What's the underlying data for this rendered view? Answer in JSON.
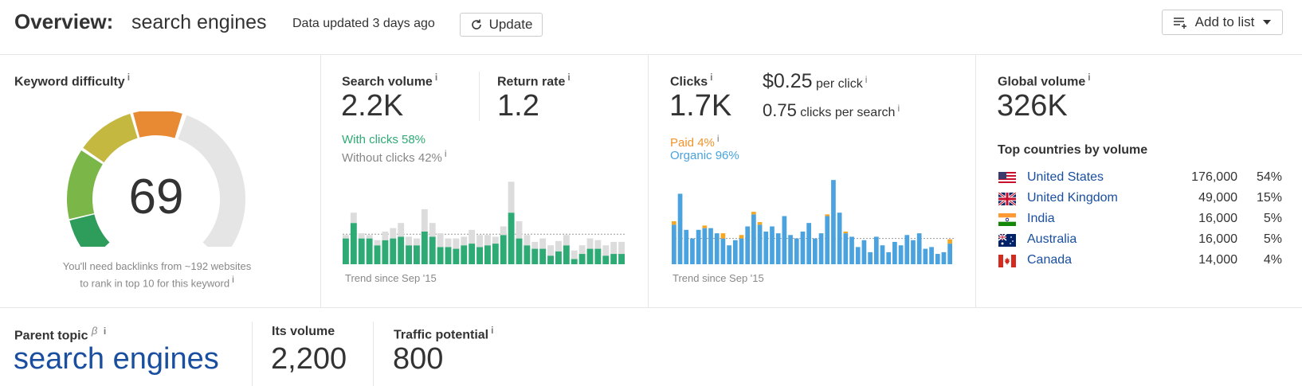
{
  "header": {
    "title": "Overview:",
    "keyword": "search engines",
    "updated": "Data updated 3 days ago",
    "update_label": "Update",
    "add_to_list_label": "Add to list"
  },
  "keyword_difficulty": {
    "label": "Keyword difficulty",
    "info": "i",
    "value": "69",
    "score": 69,
    "note_line1": "You'll need backlinks from ~192 websites",
    "note_line2": "to rank in top 10 for this keyword",
    "note_info": "i",
    "colors": [
      "#2e9d5b",
      "#7ab648",
      "#c5b840",
      "#e88a34",
      "#e5e5e5"
    ]
  },
  "search_volume": {
    "label": "Search volume",
    "info": "i",
    "value": "2.2K",
    "return_rate_label": "Return rate",
    "return_rate_info": "i",
    "return_rate_value": "1.2",
    "with_clicks": "With clicks 58%",
    "without_clicks": "Without clicks 42%",
    "without_info": "i",
    "trend_label": "Trend since Sep '15",
    "colors": {
      "with": "#2eab74",
      "without": "#dcdcdc"
    }
  },
  "clicks": {
    "label": "Clicks",
    "info": "i",
    "value": "1.7K",
    "cpc_value": "$0.25",
    "cpc_label": "per click",
    "cpc_info": "i",
    "cps_value": "0.75",
    "cps_label": "clicks per search",
    "cps_info": "i",
    "paid": "Paid 4%",
    "paid_info": "i",
    "organic": "Organic 96%",
    "trend_label": "Trend since Sep '15",
    "colors": {
      "paid": "#f5a623",
      "organic": "#4aa3df"
    }
  },
  "global_volume": {
    "label": "Global volume",
    "info": "i",
    "value": "326K",
    "top_countries_label": "Top countries by volume",
    "countries": [
      {
        "name": "United States",
        "volume": "176,000",
        "pct": "54%",
        "flag": "us"
      },
      {
        "name": "United Kingdom",
        "volume": "49,000",
        "pct": "15%",
        "flag": "uk"
      },
      {
        "name": "India",
        "volume": "16,000",
        "pct": "5%",
        "flag": "in"
      },
      {
        "name": "Australia",
        "volume": "16,000",
        "pct": "5%",
        "flag": "au"
      },
      {
        "name": "Canada",
        "volume": "14,000",
        "pct": "4%",
        "flag": "ca"
      }
    ]
  },
  "parent_topic": {
    "label": "Parent topic",
    "beta": "β",
    "info": "i",
    "value": "search engines",
    "its_volume_label": "Its volume",
    "its_volume_value": "2,200",
    "traffic_potential_label": "Traffic potential",
    "traffic_potential_info": "i",
    "traffic_potential_value": "800"
  },
  "chart_data": [
    {
      "type": "bar",
      "name": "search-volume-trend",
      "stacked": true,
      "series": [
        {
          "name": "With clicks",
          "values": [
            30,
            48,
            30,
            30,
            22,
            28,
            30,
            32,
            22,
            22,
            38,
            32,
            20,
            20,
            18,
            22,
            24,
            20,
            22,
            24,
            34,
            60,
            30,
            22,
            18,
            18,
            10,
            15,
            22,
            6,
            12,
            18,
            18,
            10,
            12,
            12
          ]
        },
        {
          "name": "Without clicks",
          "values": [
            4,
            12,
            6,
            4,
            6,
            10,
            12,
            16,
            10,
            8,
            26,
            16,
            16,
            10,
            12,
            10,
            16,
            14,
            12,
            8,
            10,
            36,
            20,
            12,
            8,
            12,
            12,
            12,
            12,
            10,
            10,
            12,
            10,
            12,
            14,
            14
          ]
        }
      ],
      "ylim": [
        0,
        100
      ],
      "dotted_reference": 0.35,
      "xlabel": "Trend since Sep '15"
    },
    {
      "type": "bar",
      "name": "clicks-trend",
      "stacked": true,
      "series": [
        {
          "name": "Organic",
          "values": [
            46,
            82,
            40,
            30,
            40,
            42,
            42,
            36,
            30,
            22,
            28,
            30,
            44,
            58,
            46,
            38,
            44,
            36,
            56,
            34,
            30,
            38,
            48,
            30,
            36,
            56,
            98,
            60,
            36,
            32,
            20,
            28,
            14,
            32,
            22,
            14,
            26,
            22,
            34,
            28,
            36,
            18,
            20,
            12,
            14,
            24
          ]
        },
        {
          "name": "Paid",
          "values": [
            4,
            0,
            0,
            0,
            0,
            3,
            0,
            0,
            6,
            0,
            0,
            4,
            0,
            3,
            3,
            0,
            0,
            0,
            0,
            0,
            0,
            0,
            0,
            0,
            0,
            2,
            0,
            0,
            2,
            0,
            0,
            0,
            0,
            0,
            0,
            0,
            0,
            0,
            0,
            0,
            0,
            0,
            0,
            0,
            0,
            5
          ]
        }
      ],
      "ylim": [
        0,
        100
      ],
      "dotted_reference": 0.3,
      "xlabel": "Trend since Sep '15"
    }
  ]
}
